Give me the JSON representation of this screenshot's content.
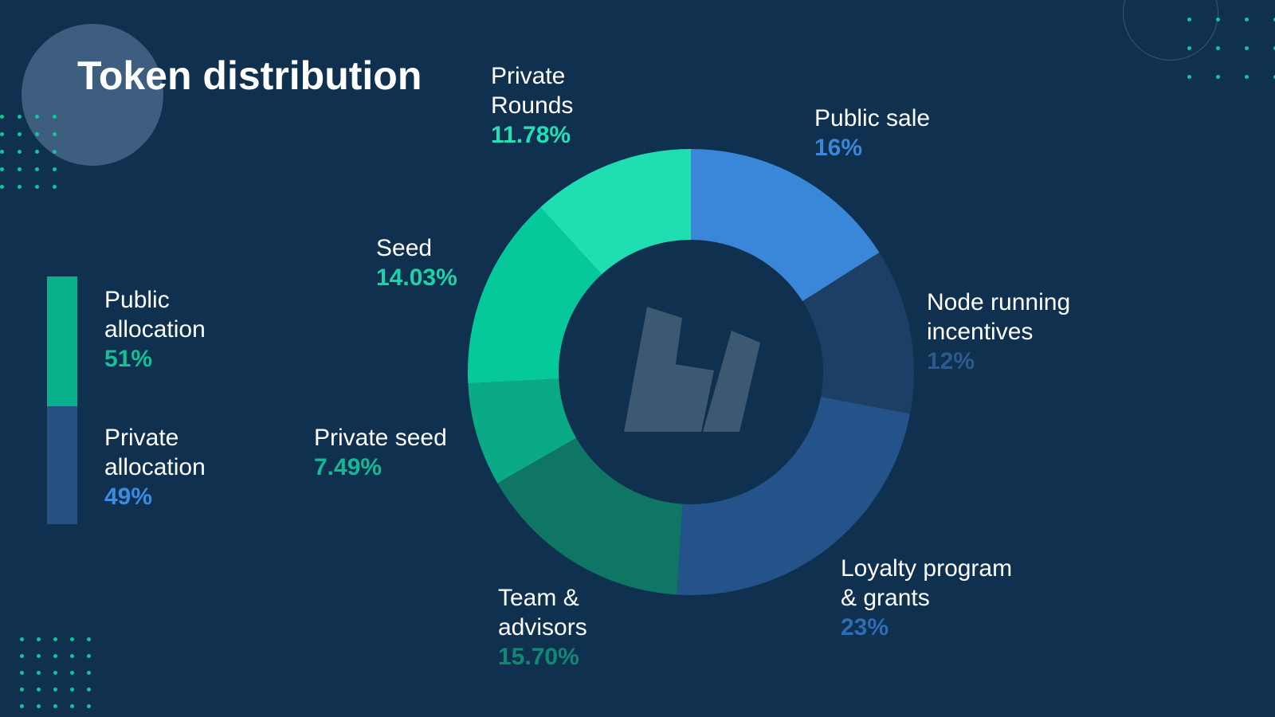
{
  "title": "Token distribution",
  "legend": [
    {
      "name": "Public\nallocation",
      "value": "51%",
      "color": "#0ab08c",
      "pct_color": "#14c196"
    },
    {
      "name": "Private\nallocation",
      "value": "49%",
      "color": "#25507f",
      "pct_color": "#3b8be0"
    }
  ],
  "chart_data": {
    "type": "pie",
    "donut": true,
    "slices": [
      {
        "name": "Public sale",
        "value": 16,
        "label": "16%",
        "color": "#3a86d9",
        "pct_color": "#3a86d9"
      },
      {
        "name": "Node running\nincentives",
        "value": 12,
        "label": "12%",
        "color": "#1d3f66",
        "pct_color": "#2d5a8c"
      },
      {
        "name": "Loyalty program\n& grants",
        "value": 23,
        "label": "23%",
        "color": "#24538a",
        "pct_color": "#2f6db3"
      },
      {
        "name": "Team &\nadvisors",
        "value": 15.7,
        "label": "15.70%",
        "color": "#0f7665",
        "pct_color": "#0f8a70"
      },
      {
        "name": "Private seed",
        "value": 7.49,
        "label": "7.49%",
        "color": "#0aaa87",
        "pct_color": "#14b892"
      },
      {
        "name": "Seed",
        "value": 14.03,
        "label": "14.03%",
        "color": "#05c99b",
        "pct_color": "#1ad3a6"
      },
      {
        "name": "Private\nRounds",
        "value": 11.78,
        "label": "11.78%",
        "color": "#1fdfb2",
        "pct_color": "#22e0b3"
      }
    ]
  }
}
